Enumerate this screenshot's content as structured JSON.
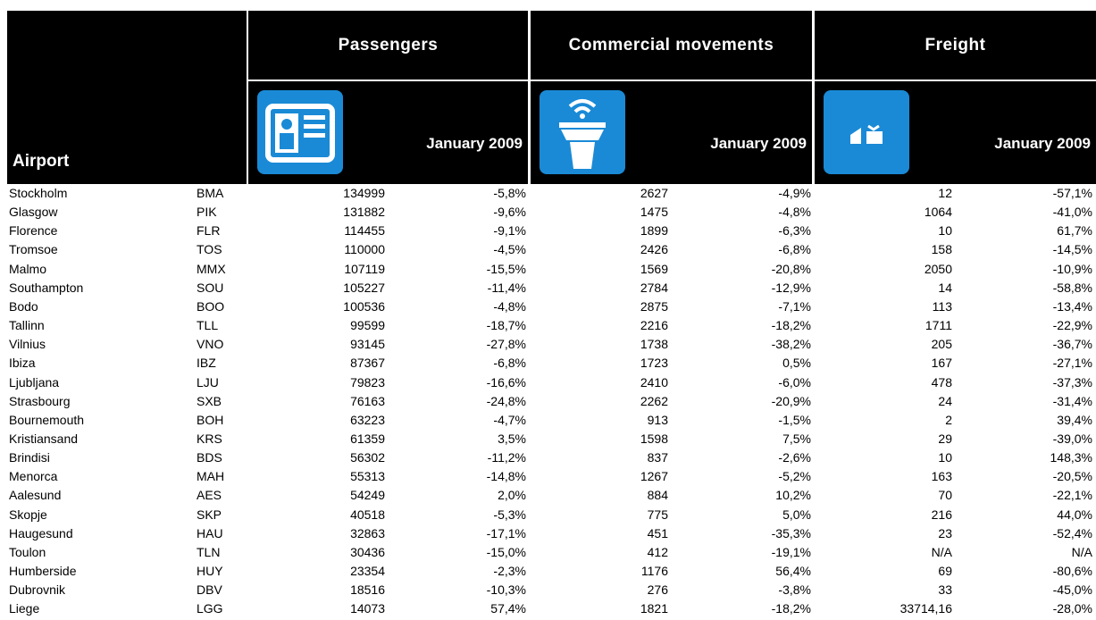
{
  "table": {
    "groups": [
      "Passengers",
      "Commercial movements",
      "Freight"
    ],
    "airport_header": "Airport",
    "period": [
      "January 2009",
      "January 2009",
      "January 2009"
    ],
    "rows": [
      [
        "Stockholm",
        "BMA",
        "134999",
        "-5,8%",
        "2627",
        "-4,9%",
        "12",
        "-57,1%"
      ],
      [
        "Glasgow",
        "PIK",
        "131882",
        "-9,6%",
        "1475",
        "-4,8%",
        "1064",
        "-41,0%"
      ],
      [
        "Florence",
        "FLR",
        "114455",
        "-9,1%",
        "1899",
        "-6,3%",
        "10",
        "61,7%"
      ],
      [
        "Tromsoe",
        "TOS",
        "110000",
        "-4,5%",
        "2426",
        "-6,8%",
        "158",
        "-14,5%"
      ],
      [
        "Malmo",
        "MMX",
        "107119",
        "-15,5%",
        "1569",
        "-20,8%",
        "2050",
        "-10,9%"
      ],
      [
        "Southampton",
        "SOU",
        "105227",
        "-11,4%",
        "2784",
        "-12,9%",
        "14",
        "-58,8%"
      ],
      [
        "Bodo",
        "BOO",
        "100536",
        "-4,8%",
        "2875",
        "-7,1%",
        "113",
        "-13,4%"
      ],
      [
        "Tallinn",
        "TLL",
        "99599",
        "-18,7%",
        "2216",
        "-18,2%",
        "1711",
        "-22,9%"
      ],
      [
        "Vilnius",
        "VNO",
        "93145",
        "-27,8%",
        "1738",
        "-38,2%",
        "205",
        "-36,7%"
      ],
      [
        "Ibiza",
        "IBZ",
        "87367",
        "-6,8%",
        "1723",
        "0,5%",
        "167",
        "-27,1%"
      ],
      [
        "Ljubljana",
        "LJU",
        "79823",
        "-16,6%",
        "2410",
        "-6,0%",
        "478",
        "-37,3%"
      ],
      [
        "Strasbourg",
        "SXB",
        "76163",
        "-24,8%",
        "2262",
        "-20,9%",
        "24",
        "-31,4%"
      ],
      [
        "Bournemouth",
        "BOH",
        "63223",
        "-4,7%",
        "913",
        "-1,5%",
        "2",
        "39,4%"
      ],
      [
        "Kristiansand",
        "KRS",
        "61359",
        "3,5%",
        "1598",
        "7,5%",
        "29",
        "-39,0%"
      ],
      [
        "Brindisi",
        "BDS",
        "56302",
        "-11,2%",
        "837",
        "-2,6%",
        "10",
        "148,3%"
      ],
      [
        "Menorca",
        "MAH",
        "55313",
        "-14,8%",
        "1267",
        "-5,2%",
        "163",
        "-20,5%"
      ],
      [
        "Aalesund",
        "AES",
        "54249",
        "2,0%",
        "884",
        "10,2%",
        "70",
        "-22,1%"
      ],
      [
        "Skopje",
        "SKP",
        "40518",
        "-5,3%",
        "775",
        "5,0%",
        "216",
        "44,0%"
      ],
      [
        "Haugesund",
        "HAU",
        "32863",
        "-17,1%",
        "451",
        "-35,3%",
        "23",
        "-52,4%"
      ],
      [
        "Toulon",
        "TLN",
        "30436",
        "-15,0%",
        "412",
        "-19,1%",
        "N/A",
        "N/A"
      ],
      [
        "Humberside",
        "HUY",
        "23354",
        "-2,3%",
        "1176",
        "56,4%",
        "69",
        "-80,6%"
      ],
      [
        "Dubrovnik",
        "DBV",
        "18516",
        "-10,3%",
        "276",
        "-3,8%",
        "33",
        "-45,0%"
      ],
      [
        "Liege",
        "LGG",
        "14073",
        "57,4%",
        "1821",
        "-18,2%",
        "33714,16",
        "-28,0%"
      ]
    ]
  }
}
